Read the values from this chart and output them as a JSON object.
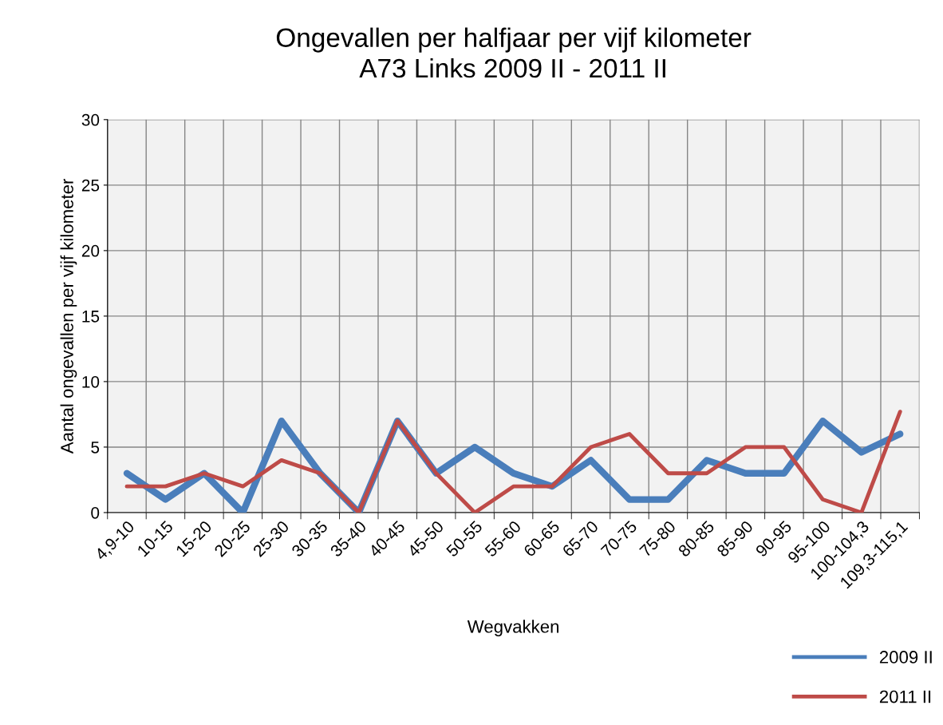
{
  "chart_data": {
    "type": "line",
    "title": "Ongevallen per halfjaar per vijf kilometer\nA73 Links 2009 II - 2011 II",
    "xlabel": "Wegvakken",
    "ylabel": "Aantal ongevallen per vijf kilometer",
    "categories": [
      "4,9-10",
      "10-15",
      "15-20",
      "20-25",
      "25-30",
      "30-35",
      "35-40",
      "40-45",
      "45-50",
      "50-55",
      "55-60",
      "60-65",
      "65-70",
      "70-75",
      "75-80",
      "80-85",
      "85-90",
      "90-95",
      "95-100",
      "100-104,3",
      "109,3-115,1"
    ],
    "series": [
      {
        "name": "2009 II",
        "color": "#4a7ebb",
        "values": [
          3,
          1,
          3,
          0,
          7,
          3,
          0,
          7,
          3,
          5,
          3,
          2,
          4,
          1,
          1,
          4,
          3,
          3,
          7,
          4.6,
          6
        ]
      },
      {
        "name": "2011 II",
        "color": "#be4b48",
        "values": [
          2,
          2,
          3,
          2,
          4,
          3,
          0,
          7,
          3,
          0,
          2,
          2,
          5,
          6,
          3,
          3,
          5,
          5,
          1,
          0,
          7.7
        ]
      }
    ],
    "ylim": [
      0,
      30
    ],
    "yticks": [
      0,
      5,
      10,
      15,
      20,
      25,
      30
    ],
    "grid": true,
    "legend": "bottom right",
    "marker": "none",
    "line_style": "solid"
  }
}
